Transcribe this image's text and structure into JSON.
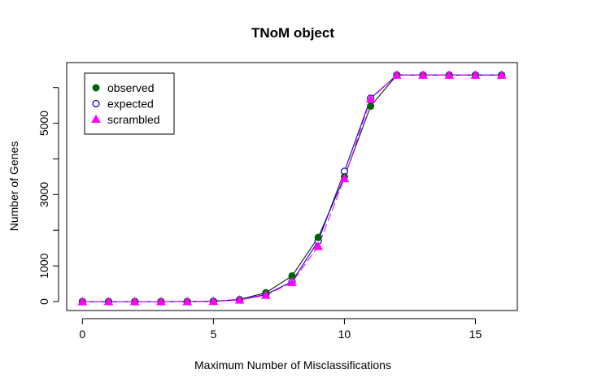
{
  "chart_data": {
    "type": "line",
    "title": "TNoM object",
    "xlabel": "Maximum Number of Misclassifications",
    "ylabel": "Number of Genes",
    "xlim": [
      -0.6,
      16.6
    ],
    "ylim": [
      -250,
      6700
    ],
    "xticks": [
      0,
      5,
      10,
      15
    ],
    "xtick_labels": [
      "0",
      "5",
      "10",
      "15"
    ],
    "yticks": [
      0,
      1000,
      2000,
      3000,
      4000,
      5000,
      6000
    ],
    "ytick_labels": [
      "0",
      "1000",
      "",
      "3000",
      "",
      "5000",
      ""
    ],
    "x": [
      0,
      1,
      2,
      3,
      4,
      5,
      6,
      7,
      8,
      9,
      10,
      11,
      12,
      13,
      14,
      15,
      16
    ],
    "series": [
      {
        "name": "observed",
        "color": "#006400",
        "line_color": "#1a1a1a",
        "marker": "filled-circle",
        "values": [
          0,
          0,
          0,
          0,
          2,
          10,
          60,
          250,
          720,
          1800,
          3500,
          5480,
          6350,
          6350,
          6350,
          6350,
          6350
        ]
      },
      {
        "name": "expected",
        "color": "#0000cc",
        "line_color": "#0000cc",
        "marker": "open-circle",
        "values": [
          0,
          0,
          0,
          0,
          2,
          8,
          50,
          200,
          560,
          1700,
          3650,
          5700,
          6350,
          6350,
          6350,
          6350,
          6350
        ]
      },
      {
        "name": "scrambled",
        "color": "#ff00ff",
        "line_color": "#ff00ff",
        "marker": "filled-triangle",
        "values": [
          0,
          0,
          0,
          0,
          2,
          8,
          45,
          180,
          540,
          1550,
          3450,
          5680,
          6350,
          6350,
          6350,
          6350,
          6350
        ]
      }
    ],
    "legend": {
      "position": "top-left",
      "entries": [
        "observed",
        "expected",
        "scrambled"
      ]
    }
  }
}
